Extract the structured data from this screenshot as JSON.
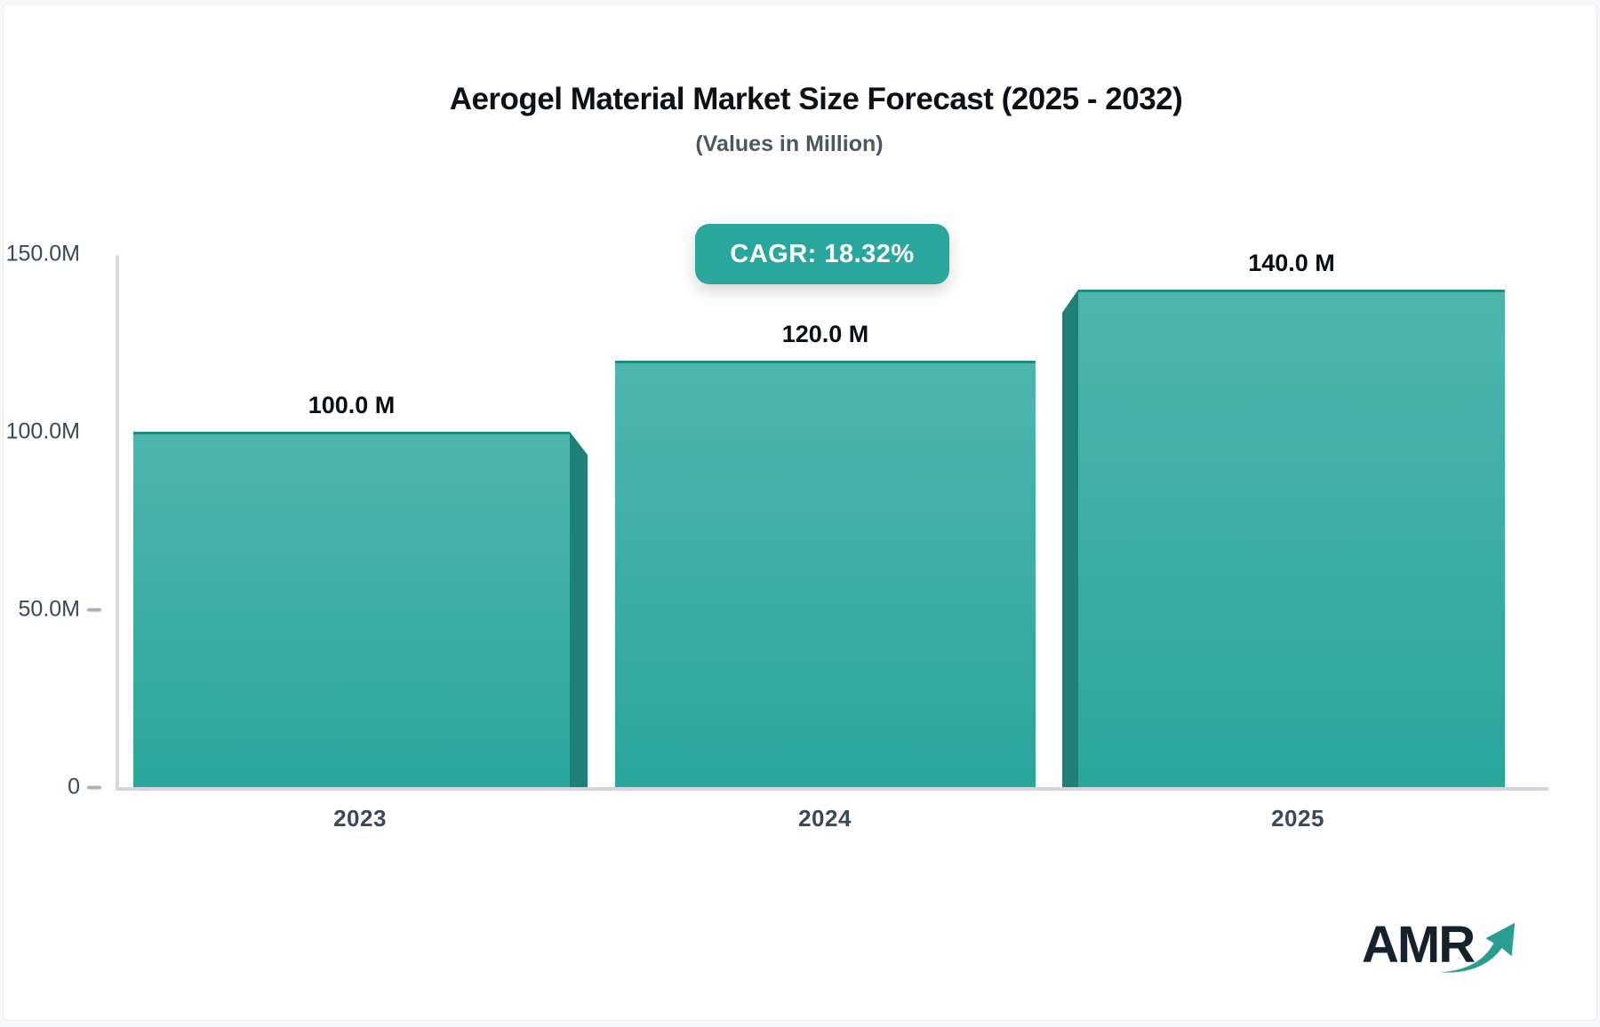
{
  "page": {
    "background": "#f7f8fa",
    "card_background": "#ffffff"
  },
  "header": {
    "title": "Aerogel Material Market Size Forecast (2025 - 2032)",
    "subtitle": "(Values in Million)"
  },
  "badge": {
    "label": "CAGR: 18.32%",
    "background": "#2aa79d",
    "text_color": "#ffffff"
  },
  "chart_data": {
    "type": "bar",
    "title": "Aerogel Material Market Size Forecast (2025 - 2032)",
    "subtitle": "(Values in Million)",
    "unit": "Million",
    "categories": [
      "2023",
      "2024",
      "2025"
    ],
    "values": [
      100,
      120,
      140
    ],
    "value_labels": [
      "100.0 M",
      "120.0 M",
      "140.0 M"
    ],
    "cagr_percent": "18.32%",
    "ylim": [
      0,
      150
    ],
    "yticks": [
      {
        "value": 150,
        "label": "150.0M",
        "dash": false
      },
      {
        "value": 100,
        "label": "100.0M",
        "dash": false
      },
      {
        "value": 50,
        "label": "50.0M",
        "dash": true
      },
      {
        "value": 0,
        "label": "0",
        "dash": true
      }
    ],
    "grid": false,
    "legend": "none",
    "bar_color_top": "#4db6ac",
    "bar_color_bottom": "#2aa69a",
    "bar_top_edge_color": "#1e8a81",
    "bar_side_color": "#1f8077",
    "axis_color": "#d5d9df",
    "label_color": "#3b4859"
  },
  "logo": {
    "text": "AMR",
    "color": "#15222b",
    "accent": "#2a9d93",
    "icon": "growth-arrow-icon"
  }
}
